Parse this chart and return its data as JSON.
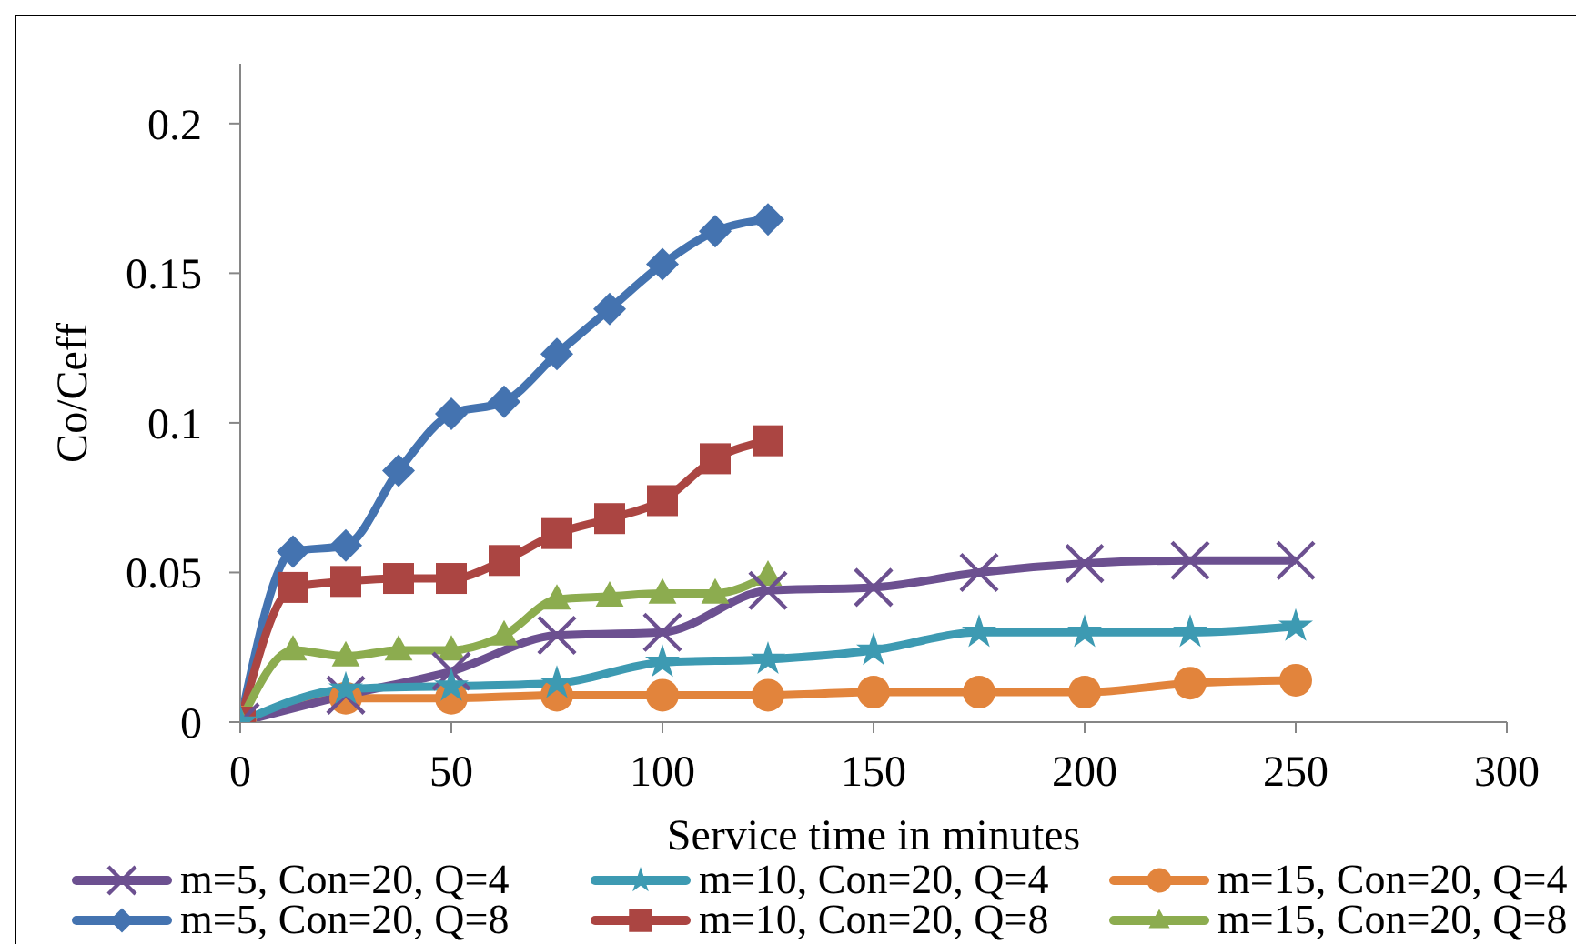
{
  "chart_data": {
    "type": "line",
    "xlabel": "Service time in minutes",
    "ylabel": "Co/Ceff",
    "xlim": [
      0,
      300
    ],
    "xticks": [
      0,
      50,
      100,
      150,
      200,
      250,
      300
    ],
    "ylim": [
      0,
      0.22
    ],
    "yticks": [
      0,
      0.05,
      0.1,
      0.15,
      0.2
    ],
    "legend": "bottom",
    "series": [
      {
        "name": "m=5, Con=20, Q=4",
        "color": "#6c5090",
        "marker": "cross",
        "x": [
          0,
          25,
          50,
          75,
          100,
          125,
          150,
          175,
          200,
          225,
          250
        ],
        "values": [
          0,
          0.009,
          0.017,
          0.029,
          0.03,
          0.044,
          0.045,
          0.05,
          0.053,
          0.054,
          0.054
        ]
      },
      {
        "name": "m=10, Con=20, Q=4",
        "color": "#3d9ab2",
        "marker": "star",
        "x": [
          0,
          25,
          50,
          75,
          100,
          125,
          150,
          175,
          200,
          225,
          250
        ],
        "values": [
          0,
          0.011,
          0.012,
          0.013,
          0.02,
          0.021,
          0.024,
          0.03,
          0.03,
          0.03,
          0.032
        ]
      },
      {
        "name": "m=15, Con=20, Q=4",
        "color": "#e2843c",
        "marker": "circle",
        "x": [
          0,
          25,
          50,
          75,
          100,
          125,
          150,
          175,
          200,
          225,
          250
        ],
        "values": [
          0,
          0.008,
          0.008,
          0.009,
          0.009,
          0.009,
          0.01,
          0.01,
          0.01,
          0.013,
          0.014
        ]
      },
      {
        "name": "m=5, Con=20, Q=8",
        "color": "#4473b0",
        "marker": "diamond",
        "x": [
          0,
          12.5,
          25,
          37.5,
          50,
          62.5,
          75,
          87.5,
          100,
          112.5,
          125
        ],
        "values": [
          0,
          0.057,
          0.059,
          0.084,
          0.103,
          0.107,
          0.123,
          0.138,
          0.153,
          0.164,
          0.168
        ]
      },
      {
        "name": "m=10, Con=20, Q=8",
        "color": "#ab4542",
        "marker": "square",
        "x": [
          0,
          12.5,
          25,
          37.5,
          50,
          62.5,
          75,
          87.5,
          100,
          112.5,
          125
        ],
        "values": [
          0,
          0.045,
          0.047,
          0.048,
          0.048,
          0.054,
          0.063,
          0.068,
          0.074,
          0.088,
          0.094
        ]
      },
      {
        "name": "m=15, Con=20, Q=8",
        "color": "#8cac4f",
        "marker": "triangle",
        "x": [
          0,
          12.5,
          25,
          37.5,
          50,
          62.5,
          75,
          87.5,
          100,
          112.5,
          125
        ],
        "values": [
          0,
          0.024,
          0.022,
          0.024,
          0.024,
          0.029,
          0.041,
          0.042,
          0.043,
          0.043,
          0.049
        ]
      }
    ]
  }
}
